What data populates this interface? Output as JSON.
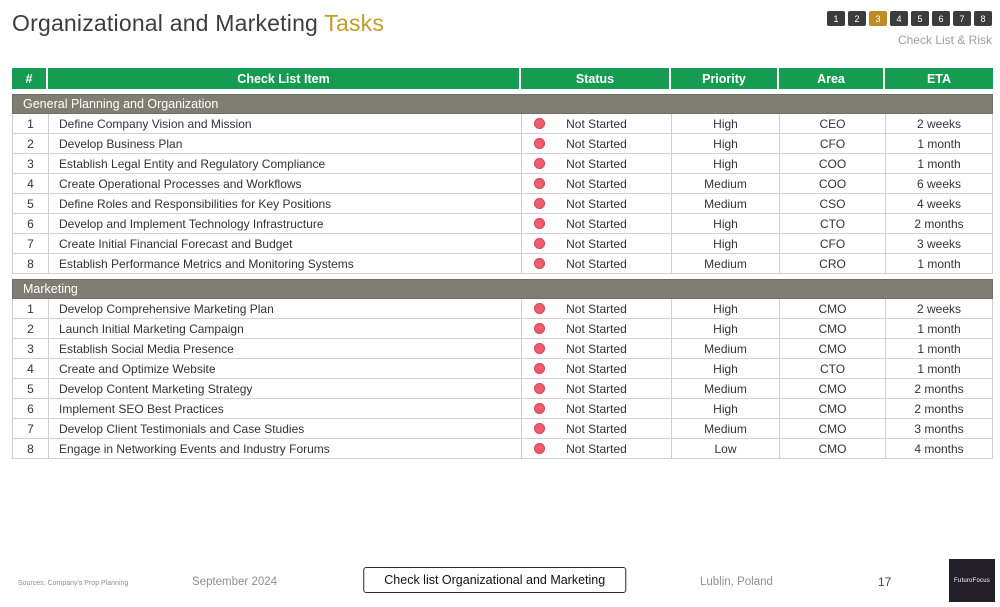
{
  "title": {
    "main": "Organizational and Marketing",
    "accent": "Tasks"
  },
  "pagination": {
    "pages": [
      "1",
      "2",
      "3",
      "4",
      "5",
      "6",
      "7",
      "8"
    ],
    "active_page": "3",
    "label": "Check List & Risk"
  },
  "table": {
    "headers": [
      "#",
      "Check List Item",
      "Status",
      "Priority",
      "Area",
      "ETA"
    ],
    "sections": [
      {
        "name": "General Planning and Organization",
        "rows": [
          {
            "num": "1",
            "item": "Define Company Vision and Mission",
            "status": "Not Started",
            "priority": "High",
            "area": "CEO",
            "eta": "2 weeks"
          },
          {
            "num": "2",
            "item": "Develop Business Plan",
            "status": "Not Started",
            "priority": "High",
            "area": "CFO",
            "eta": "1 month"
          },
          {
            "num": "3",
            "item": "Establish Legal Entity and Regulatory Compliance",
            "status": "Not Started",
            "priority": "High",
            "area": "COO",
            "eta": "1 month"
          },
          {
            "num": "4",
            "item": "Create Operational Processes and Workflows",
            "status": "Not Started",
            "priority": "Medium",
            "area": "COO",
            "eta": "6 weeks"
          },
          {
            "num": "5",
            "item": "Define Roles and Responsibilities for Key Positions",
            "status": "Not Started",
            "priority": "Medium",
            "area": "CSO",
            "eta": "4 weeks"
          },
          {
            "num": "6",
            "item": "Develop and Implement Technology Infrastructure",
            "status": "Not Started",
            "priority": "High",
            "area": "CTO",
            "eta": "2 months"
          },
          {
            "num": "7",
            "item": "Create Initial Financial Forecast and Budget",
            "status": "Not Started",
            "priority": "High",
            "area": "CFO",
            "eta": "3 weeks"
          },
          {
            "num": "8",
            "item": "Establish Performance Metrics and Monitoring Systems",
            "status": "Not Started",
            "priority": "Medium",
            "area": "CRO",
            "eta": "1 month"
          }
        ]
      },
      {
        "name": "Marketing",
        "rows": [
          {
            "num": "1",
            "item": "Develop Comprehensive Marketing Plan",
            "status": "Not Started",
            "priority": "High",
            "area": "CMO",
            "eta": "2 weeks"
          },
          {
            "num": "2",
            "item": "Launch Initial Marketing Campaign",
            "status": "Not Started",
            "priority": "High",
            "area": "CMO",
            "eta": "1 month"
          },
          {
            "num": "3",
            "item": "Establish Social Media Presence",
            "status": "Not Started",
            "priority": "Medium",
            "area": "CMO",
            "eta": "1 month"
          },
          {
            "num": "4",
            "item": "Create and Optimize Website",
            "status": "Not Started",
            "priority": "High",
            "area": "CTO",
            "eta": "1 month"
          },
          {
            "num": "5",
            "item": "Develop Content Marketing Strategy",
            "status": "Not Started",
            "priority": "Medium",
            "area": "CMO",
            "eta": "2 months"
          },
          {
            "num": "6",
            "item": "Implement SEO Best Practices",
            "status": "Not Started",
            "priority": "High",
            "area": "CMO",
            "eta": "2 months"
          },
          {
            "num": "7",
            "item": "Develop Client Testimonials and Case Studies",
            "status": "Not Started",
            "priority": "Medium",
            "area": "CMO",
            "eta": "3 months"
          },
          {
            "num": "8",
            "item": "Engage in Networking Events and Industry Forums",
            "status": "Not Started",
            "priority": "Low",
            "area": "CMO",
            "eta": "4 months"
          }
        ]
      }
    ]
  },
  "footer": {
    "sources": "Sources: Company's Prop Planning",
    "date": "September 2024",
    "button_label": "Check list Organizational and Marketing",
    "location": "Lublin, Poland",
    "page_number": "17",
    "logo_text": "FuturoFocus"
  },
  "colors": {
    "header_green": "#169c52",
    "section_gray": "#7e7e74",
    "status_red": "#ee5d6c",
    "accent_gold": "#c49a2b",
    "pager_dark": "#3c3c3c",
    "pager_active_gold": "#c08a28"
  }
}
